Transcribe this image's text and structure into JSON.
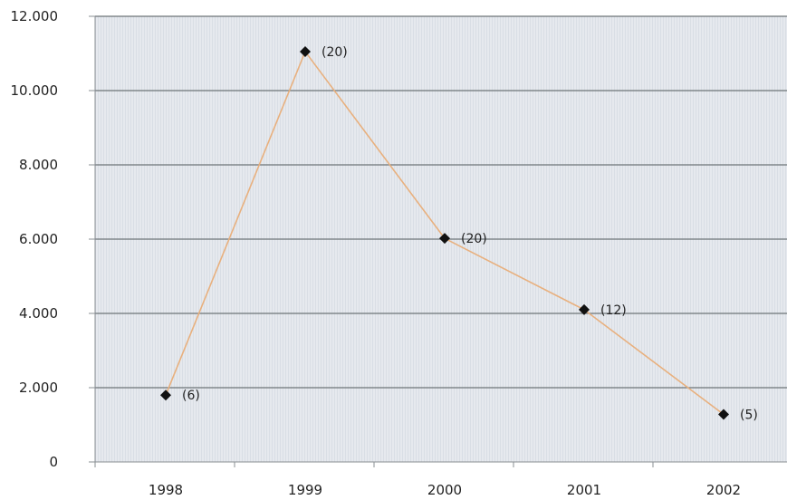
{
  "chart_data": {
    "type": "line",
    "categories": [
      "1998",
      "1999",
      "2000",
      "2001",
      "2002"
    ],
    "values": [
      1800,
      11050,
      6020,
      4100,
      1280
    ],
    "point_labels": [
      "(6)",
      "(20)",
      "(20)",
      "(12)",
      "(5)"
    ],
    "y_ticks": [
      0,
      2000,
      4000,
      6000,
      8000,
      10000,
      12000
    ],
    "y_tick_labels": [
      "0",
      "2.000",
      "4.000",
      "6.000",
      "8.000",
      "10.000",
      "12.000"
    ],
    "ylim": [
      0,
      12000
    ],
    "grid": true,
    "colors": {
      "line": "#e8b07e",
      "marker": "#111111",
      "plot_background": "#e3e7ec",
      "grid": "#6e7478",
      "axis": "#8a8f93"
    }
  }
}
